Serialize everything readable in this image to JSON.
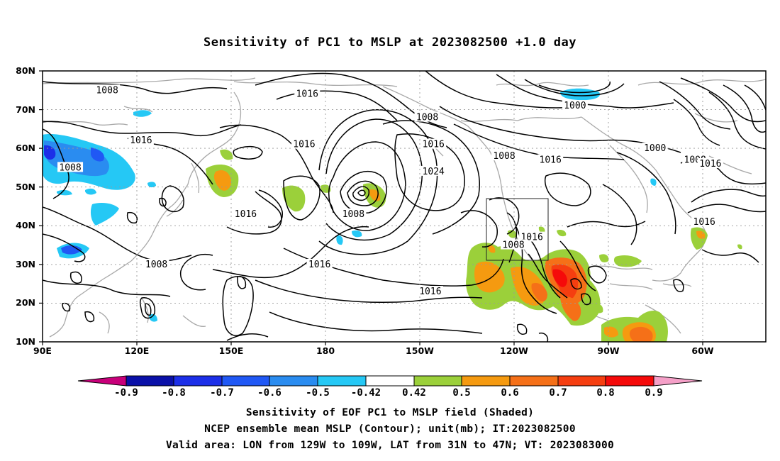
{
  "title": "Sensitivity of PC1 to MSLP at 2023082500 +1.0 day",
  "map": {
    "lat_labels": [
      "80N",
      "70N",
      "60N",
      "50N",
      "40N",
      "30N",
      "20N",
      "10N"
    ],
    "lon_labels": [
      "90E",
      "120E",
      "150E",
      "180",
      "150W",
      "120W",
      "90W",
      "60W"
    ],
    "valid_box": {
      "lon_from": "129W",
      "lon_to": "109W",
      "lat_from": "31N",
      "lat_to": "47N"
    },
    "contour_labels": [
      {
        "text": "1008",
        "lon": 111,
        "lat": 75
      },
      {
        "text": "1016",
        "lon": 176,
        "lat": 74
      },
      {
        "text": "1008",
        "lon": -145,
        "lat": 68
      },
      {
        "text": "1000",
        "lon": -97,
        "lat": 71
      },
      {
        "text": "1016",
        "lon": 122,
        "lat": 62
      },
      {
        "text": "1016",
        "lon": 175,
        "lat": 61
      },
      {
        "text": "1016",
        "lon": -143,
        "lat": 61
      },
      {
        "text": "1008",
        "lon": -120,
        "lat": 58
      },
      {
        "text": "1016",
        "lon": -105,
        "lat": 57
      },
      {
        "text": "1000",
        "lon": -71,
        "lat": 60
      },
      {
        "text": "1008",
        "lon": -58,
        "lat": 57
      },
      {
        "text": "1016",
        "lon": -53,
        "lat": 56
      },
      {
        "text": "1008",
        "lon": 99,
        "lat": 55
      },
      {
        "text": "1024",
        "lon": -143,
        "lat": 54
      },
      {
        "text": "1008",
        "lon": -169,
        "lat": 43
      },
      {
        "text": "1016",
        "lon": 156,
        "lat": 43
      },
      {
        "text": "1016",
        "lon": -111,
        "lat": 37
      },
      {
        "text": "1008",
        "lon": -117,
        "lat": 35
      },
      {
        "text": "1016",
        "lon": -55,
        "lat": 41
      },
      {
        "text": "1016",
        "lon": 180,
        "lat": 30
      },
      {
        "text": "1008",
        "lon": 127,
        "lat": 30
      },
      {
        "text": "1016",
        "lon": -144,
        "lat": 23
      }
    ]
  },
  "colorbar": {
    "labels": [
      "-0.9",
      "-0.8",
      "-0.7",
      "-0.6",
      "-0.5",
      "-0.42",
      "0.42",
      "0.5",
      "0.6",
      "0.7",
      "0.8",
      "0.9"
    ],
    "colors": {
      "lt_-0.9": "#c8007a",
      "-0.9_-0.8": "#0a10a8",
      "-0.8_-0.7": "#1c2fe8",
      "-0.7_-0.6": "#2058f5",
      "-0.6_-0.5": "#2a8cf0",
      "-0.5_-0.42": "#25c8f5",
      "-0.42_0.42": "#ffffff",
      "0.42_0.5": "#9bd03a",
      "0.5_0.6": "#f59a10",
      "0.6_0.7": "#f57018",
      "0.7_0.8": "#f53e10",
      "0.8_0.9": "#f50a0a",
      "gt_0.9": "#f5a0c8"
    }
  },
  "caption": {
    "line1": "Sensitivity of EOF PC1 to MSLP field (Shaded)",
    "line2": "NCEP ensemble mean MSLP (Contour); unit(mb); IT:2023082500",
    "line3": "Valid area: LON from 129W to 109W, LAT from 31N to 47N; VT: 2023083000"
  }
}
